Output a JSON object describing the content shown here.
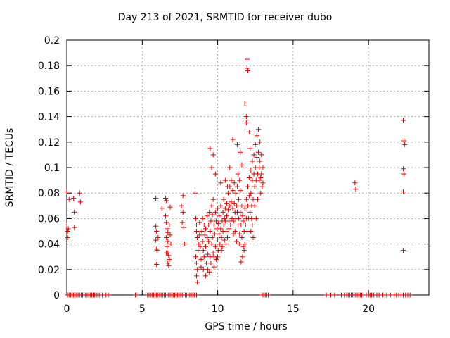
{
  "chart_data": {
    "type": "scatter",
    "title": "Day 213 of 2021, SRMTID for receiver dubo",
    "xlabel": "GPS time / hours",
    "ylabel": "SRMTID / TECUs",
    "xlim": [
      0,
      24
    ],
    "ylim": [
      0,
      0.2
    ],
    "x_ticks": [
      0,
      5,
      10,
      15,
      20
    ],
    "y_ticks": [
      0,
      0.02,
      0.04,
      0.06,
      0.08,
      0.1,
      0.12,
      0.14,
      0.16,
      0.18,
      0.2
    ],
    "x_tick_labels": [
      "0",
      "5",
      "10",
      "15",
      "20"
    ],
    "y_tick_labels": [
      "0",
      "0.02",
      "0.04",
      "0.06",
      "0.08",
      "0.1",
      "0.12",
      "0.14",
      "0.16",
      "0.18",
      "0.2"
    ],
    "grid": true,
    "marker": "+",
    "series": [
      {
        "name": "SRMTID",
        "color": "#e00000",
        "points": [
          [
            0.0,
            0.081
          ],
          [
            0.0,
            0.055
          ],
          [
            0.05,
            0.05
          ],
          [
            0.1,
            0.052
          ],
          [
            0.15,
            0.075
          ],
          [
            0.05,
            0.045
          ],
          [
            0.45,
            0.076
          ],
          [
            0.5,
            0.065
          ],
          [
            0.5,
            0.053
          ],
          [
            0.85,
            0.08
          ],
          [
            0.9,
            0.073
          ],
          [
            5.9,
            0.076
          ],
          [
            5.9,
            0.054
          ],
          [
            5.95,
            0.05
          ],
          [
            5.9,
            0.043
          ],
          [
            5.95,
            0.036
          ],
          [
            6.0,
            0.035
          ],
          [
            5.95,
            0.024
          ],
          [
            6.05,
            0.045
          ],
          [
            6.3,
            0.068
          ],
          [
            6.55,
            0.076
          ],
          [
            6.6,
            0.074
          ],
          [
            6.55,
            0.062
          ],
          [
            6.6,
            0.057
          ],
          [
            6.65,
            0.052
          ],
          [
            6.7,
            0.049
          ],
          [
            6.6,
            0.045
          ],
          [
            6.7,
            0.042
          ],
          [
            6.65,
            0.038
          ],
          [
            6.7,
            0.033
          ],
          [
            6.75,
            0.031
          ],
          [
            6.8,
            0.028
          ],
          [
            6.7,
            0.025
          ],
          [
            6.75,
            0.023
          ],
          [
            6.85,
            0.069
          ],
          [
            6.8,
            0.055
          ],
          [
            6.85,
            0.047
          ],
          [
            6.9,
            0.04
          ],
          [
            6.6,
            0.033
          ],
          [
            7.7,
            0.078
          ],
          [
            7.6,
            0.07
          ],
          [
            7.7,
            0.065
          ],
          [
            7.65,
            0.057
          ],
          [
            7.75,
            0.053
          ],
          [
            7.8,
            0.04
          ],
          [
            8.5,
            0.08
          ],
          [
            8.55,
            0.06
          ],
          [
            8.6,
            0.055
          ],
          [
            8.6,
            0.05
          ],
          [
            8.65,
            0.045
          ],
          [
            8.55,
            0.03
          ],
          [
            8.6,
            0.025
          ],
          [
            8.65,
            0.02
          ],
          [
            8.6,
            0.015
          ],
          [
            8.65,
            0.01
          ],
          [
            8.7,
            0.035
          ],
          [
            8.75,
            0.04
          ],
          [
            8.8,
            0.057
          ],
          [
            8.8,
            0.047
          ],
          [
            8.85,
            0.038
          ],
          [
            8.9,
            0.028
          ],
          [
            8.9,
            0.022
          ],
          [
            8.95,
            0.05
          ],
          [
            9.0,
            0.06
          ],
          [
            9.0,
            0.042
          ],
          [
            9.05,
            0.035
          ],
          [
            9.05,
            0.02
          ],
          [
            9.1,
            0.055
          ],
          [
            9.1,
            0.03
          ],
          [
            9.15,
            0.047
          ],
          [
            9.2,
            0.052
          ],
          [
            9.2,
            0.038
          ],
          [
            9.25,
            0.025
          ],
          [
            9.3,
            0.062
          ],
          [
            9.3,
            0.045
          ],
          [
            9.35,
            0.032
          ],
          [
            9.4,
            0.055
          ],
          [
            9.4,
            0.042
          ],
          [
            9.45,
            0.065
          ],
          [
            9.45,
            0.018
          ],
          [
            9.5,
            0.05
          ],
          [
            9.5,
            0.03
          ],
          [
            9.55,
            0.058
          ],
          [
            9.6,
            0.07
          ],
          [
            9.6,
            0.04
          ],
          [
            9.65,
            0.063
          ],
          [
            9.65,
            0.045
          ],
          [
            9.7,
            0.075
          ],
          [
            9.7,
            0.033
          ],
          [
            9.75,
            0.055
          ],
          [
            9.75,
            0.022
          ],
          [
            9.8,
            0.048
          ],
          [
            9.85,
            0.065
          ],
          [
            9.85,
            0.038
          ],
          [
            9.9,
            0.058
          ],
          [
            9.9,
            0.028
          ],
          [
            9.95,
            0.052
          ],
          [
            10.0,
            0.044
          ],
          [
            10.0,
            0.068
          ],
          [
            10.05,
            0.035
          ],
          [
            10.05,
            0.056
          ],
          [
            10.1,
            0.048
          ],
          [
            10.1,
            0.062
          ],
          [
            10.15,
            0.04
          ],
          [
            10.2,
            0.07
          ],
          [
            10.2,
            0.052
          ],
          [
            10.25,
            0.045
          ],
          [
            10.3,
            0.058
          ],
          [
            10.3,
            0.038
          ],
          [
            10.35,
            0.065
          ],
          [
            10.35,
            0.05
          ],
          [
            10.4,
            0.075
          ],
          [
            10.4,
            0.055
          ],
          [
            10.45,
            0.043
          ],
          [
            10.5,
            0.068
          ],
          [
            10.5,
            0.058
          ],
          [
            10.55,
            0.05
          ],
          [
            10.6,
            0.072
          ],
          [
            10.6,
            0.062
          ],
          [
            10.65,
            0.045
          ],
          [
            10.7,
            0.08
          ],
          [
            10.7,
            0.067
          ],
          [
            10.75,
            0.058
          ],
          [
            10.8,
            0.085
          ],
          [
            10.8,
            0.07
          ],
          [
            10.85,
            0.055
          ],
          [
            10.9,
            0.09
          ],
          [
            10.9,
            0.073
          ],
          [
            10.95,
            0.06
          ],
          [
            11.0,
            0.082
          ],
          [
            11.0,
            0.068
          ],
          [
            11.05,
            0.058
          ],
          [
            11.1,
            0.088
          ],
          [
            11.1,
            0.072
          ],
          [
            11.15,
            0.065
          ],
          [
            11.2,
            0.08
          ],
          [
            11.2,
            0.06
          ],
          [
            11.25,
            0.07
          ],
          [
            11.3,
            0.085
          ],
          [
            11.3,
            0.065
          ],
          [
            11.35,
            0.055
          ],
          [
            11.4,
            0.075
          ],
          [
            11.4,
            0.06
          ],
          [
            11.45,
            0.048
          ],
          [
            11.5,
            0.082
          ],
          [
            11.5,
            0.065
          ],
          [
            11.55,
            0.055
          ],
          [
            11.6,
            0.07
          ],
          [
            11.6,
            0.045
          ],
          [
            11.65,
            0.062
          ],
          [
            11.7,
            0.058
          ],
          [
            11.7,
            0.038
          ],
          [
            11.75,
            0.05
          ],
          [
            11.8,
            0.068
          ],
          [
            11.8,
            0.04
          ],
          [
            11.85,
            0.055
          ],
          [
            11.9,
            0.075
          ],
          [
            11.9,
            0.06
          ],
          [
            11.95,
            0.05
          ],
          [
            12.0,
            0.085
          ],
          [
            12.0,
            0.07
          ],
          [
            12.05,
            0.06
          ],
          [
            12.1,
            0.092
          ],
          [
            12.1,
            0.078
          ],
          [
            12.15,
            0.065
          ],
          [
            12.2,
            0.098
          ],
          [
            12.2,
            0.08
          ],
          [
            12.25,
            0.07
          ],
          [
            12.3,
            0.105
          ],
          [
            12.3,
            0.09
          ],
          [
            12.35,
            0.075
          ],
          [
            12.4,
            0.11
          ],
          [
            12.4,
            0.095
          ],
          [
            12.45,
            0.085
          ],
          [
            12.5,
            0.118
          ],
          [
            12.5,
            0.1
          ],
          [
            12.55,
            0.09
          ],
          [
            12.6,
            0.125
          ],
          [
            12.6,
            0.108
          ],
          [
            12.65,
            0.095
          ],
          [
            12.7,
            0.13
          ],
          [
            12.7,
            0.112
          ],
          [
            12.75,
            0.1
          ],
          [
            12.8,
            0.12
          ],
          [
            12.8,
            0.105
          ],
          [
            12.85,
            0.092
          ],
          [
            12.9,
            0.11
          ],
          [
            12.9,
            0.095
          ],
          [
            12.95,
            0.085
          ],
          [
            13.0,
            0.1
          ],
          [
            13.0,
            0.088
          ],
          [
            12.85,
            0.08
          ],
          [
            9.5,
            0.115
          ],
          [
            9.6,
            0.1
          ],
          [
            9.7,
            0.11
          ],
          [
            9.85,
            0.095
          ],
          [
            10.2,
            0.088
          ],
          [
            10.5,
            0.09
          ],
          [
            10.8,
            0.1
          ],
          [
            11.0,
            0.122
          ],
          [
            11.3,
            0.118
          ],
          [
            11.5,
            0.112
          ],
          [
            11.6,
            0.102
          ],
          [
            11.8,
            0.15
          ],
          [
            11.9,
            0.14
          ],
          [
            11.9,
            0.135
          ],
          [
            11.95,
            0.185
          ],
          [
            11.95,
            0.178
          ],
          [
            12.0,
            0.176
          ],
          [
            12.1,
            0.128
          ],
          [
            12.15,
            0.115
          ],
          [
            12.25,
            0.06
          ],
          [
            12.3,
            0.055
          ],
          [
            12.2,
            0.05
          ],
          [
            12.35,
            0.045
          ],
          [
            11.75,
            0.035
          ],
          [
            11.65,
            0.03
          ],
          [
            11.55,
            0.026
          ],
          [
            11.45,
            0.04
          ],
          [
            11.25,
            0.042
          ],
          [
            11.05,
            0.048
          ],
          [
            10.75,
            0.052
          ],
          [
            10.55,
            0.04
          ],
          [
            10.25,
            0.035
          ],
          [
            10.0,
            0.03
          ],
          [
            9.75,
            0.03
          ],
          [
            9.55,
            0.025
          ],
          [
            9.35,
            0.02
          ],
          [
            9.2,
            0.015
          ],
          [
            10.45,
            0.06
          ],
          [
            11.15,
            0.05
          ],
          [
            12.45,
            0.07
          ],
          [
            12.55,
            0.06
          ],
          [
            12.65,
            0.075
          ],
          [
            12.75,
            0.09
          ],
          [
            11.35,
            0.095
          ],
          [
            11.45,
            0.09
          ],
          [
            10.65,
            0.085
          ],
          [
            19.1,
            0.088
          ],
          [
            19.15,
            0.083
          ],
          [
            22.3,
            0.137
          ],
          [
            22.35,
            0.121
          ],
          [
            22.4,
            0.118
          ],
          [
            22.3,
            0.099
          ],
          [
            22.35,
            0.095
          ],
          [
            22.3,
            0.081
          ],
          [
            22.3,
            0.035
          ]
        ],
        "zero_x": [
          0.05,
          0.15,
          0.25,
          0.35,
          0.45,
          0.55,
          0.65,
          0.75,
          0.85,
          0.95,
          1.05,
          1.15,
          1.25,
          1.35,
          1.45,
          1.55,
          1.65,
          1.75,
          1.85,
          2.0,
          2.15,
          2.35,
          2.6,
          2.75,
          4.55,
          4.6,
          5.35,
          5.45,
          5.55,
          5.65,
          5.75,
          5.85,
          5.95,
          6.05,
          6.15,
          6.25,
          6.35,
          6.45,
          6.55,
          6.65,
          6.75,
          6.85,
          6.95,
          7.05,
          7.15,
          7.25,
          7.35,
          7.45,
          7.55,
          7.65,
          7.75,
          7.85,
          7.95,
          8.05,
          8.15,
          8.25,
          8.35,
          8.45,
          8.6,
          12.95,
          13.05,
          13.15,
          13.25,
          13.35,
          17.2,
          17.5,
          17.75,
          18.2,
          18.4,
          18.55,
          18.65,
          18.75,
          18.85,
          18.95,
          19.05,
          19.15,
          19.25,
          19.35,
          19.45,
          19.55,
          19.85,
          20.0,
          20.1,
          20.2,
          20.35,
          20.55,
          20.7,
          20.95,
          21.2,
          21.45,
          21.7,
          21.85,
          22.0,
          22.15,
          22.3,
          22.45,
          22.6,
          22.75
        ]
      }
    ]
  }
}
